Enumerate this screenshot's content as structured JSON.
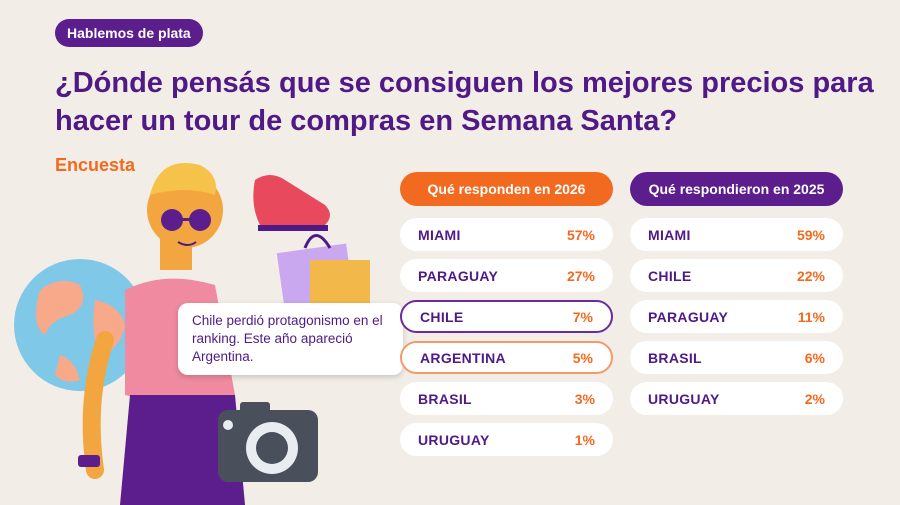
{
  "badge": "Hablemos de plata",
  "headline": "¿Dónde pensás que se consiguen los mejores precios para hacer un tour de compras en Semana Santa?",
  "subtitle": "Encuesta",
  "callout": "Chile perdió protagonismo en el ranking. Este año apareció Argentina.",
  "colors": {
    "purple": "#5b1e8c",
    "orange": "#f26a1f",
    "background": "#f3ede7"
  },
  "chart_data": [
    {
      "type": "table",
      "title": "Qué responden en 2026",
      "categories": [
        "MIAMI",
        "PARAGUAY",
        "CHILE",
        "ARGENTINA",
        "BRASIL",
        "URUGUAY"
      ],
      "values": [
        "57%",
        "27%",
        "7%",
        "5%",
        "3%",
        "1%"
      ]
    },
    {
      "type": "table",
      "title": "Qué respondieron en 2025",
      "categories": [
        "MIAMI",
        "CHILE",
        "PARAGUAY",
        "BRASIL",
        "URUGUAY"
      ],
      "values": [
        "59%",
        "22%",
        "11%",
        "6%",
        "2%"
      ]
    }
  ]
}
